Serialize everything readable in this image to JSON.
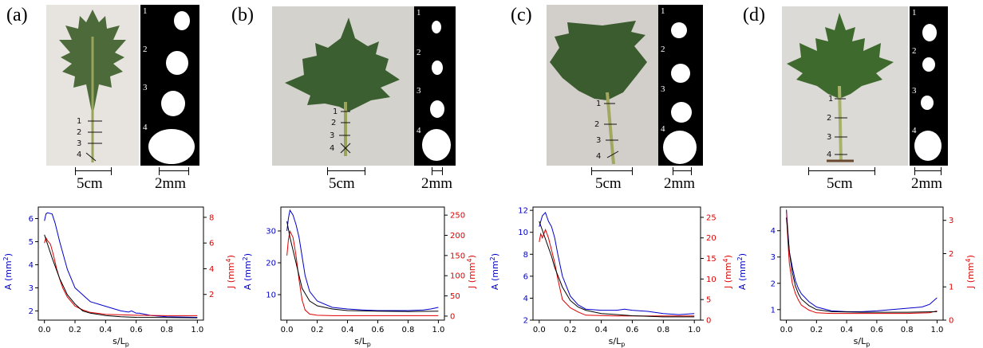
{
  "panels": [
    {
      "letter": "(a)",
      "photo_scale": "5cm",
      "section_scale": "2mm",
      "section_numbers": [
        "1",
        "2",
        "3",
        "4"
      ],
      "petiole_marks": [
        "1",
        "2",
        "3",
        "4"
      ],
      "colors": {
        "photo_bg": "#e7e4df",
        "leaf": "#4d6b3a",
        "stem": "#9aa35a"
      },
      "chart_data": {
        "type": "line",
        "x_ticks": [
          "0.0",
          "0.2",
          "0.4",
          "0.6",
          "0.8",
          "1.0"
        ],
        "xlabel": "s/L",
        "xlabel_sub": "p",
        "ylabel_left": "A (mm",
        "ylabel_left_sup": "2",
        "ylabel_left_end": ")",
        "ylabel_right": "J (mm",
        "ylabel_right_sup": "4",
        "ylabel_right_end": ")",
        "xlim": [
          -0.04,
          1.04
        ],
        "ylim_left": [
          1.6,
          6.5
        ],
        "ylim_right": [
          0.0,
          8.8
        ],
        "y_left_ticks": [
          2,
          3,
          4,
          5,
          6
        ],
        "y_right_ticks": [
          2,
          4,
          6,
          8
        ],
        "series": [
          {
            "axis": "left",
            "color": "#0000cc",
            "x": [
              0,
              0.01,
              0.02,
              0.05,
              0.07,
              0.1,
              0.15,
              0.2,
              0.25,
              0.3,
              0.4,
              0.5,
              0.55,
              0.57,
              0.6,
              0.62,
              0.7,
              0.8,
              1.0
            ],
            "y": [
              5.9,
              6.2,
              6.25,
              6.2,
              5.8,
              5.0,
              3.8,
              3.0,
              2.7,
              2.4,
              2.2,
              2.0,
              1.95,
              2.0,
              1.9,
              1.9,
              1.8,
              1.75,
              1.72
            ]
          },
          {
            "axis": "right",
            "color": "#dd0000",
            "x": [
              0,
              0.01,
              0.02,
              0.04,
              0.06,
              0.08,
              0.1,
              0.12,
              0.15,
              0.2,
              0.25,
              0.3,
              0.4,
              0.6,
              0.8,
              1.0
            ],
            "y": [
              6.0,
              6.4,
              6.2,
              5.9,
              5.0,
              4.0,
              3.2,
              2.5,
              1.8,
              1.1,
              0.8,
              0.6,
              0.45,
              0.38,
              0.35,
              0.35
            ]
          },
          {
            "axis": "left",
            "color": "#000000",
            "x": [
              0,
              0.02,
              0.05,
              0.1,
              0.15,
              0.2,
              0.25,
              0.3,
              0.4,
              0.5,
              0.6,
              0.8,
              1.0
            ],
            "y": [
              5.3,
              4.9,
              4.3,
              3.4,
              2.7,
              2.3,
              2.0,
              1.9,
              1.8,
              1.75,
              1.72,
              1.71,
              1.7
            ]
          }
        ]
      }
    },
    {
      "letter": "(b)",
      "photo_scale": "5cm",
      "section_scale": "2mm",
      "section_numbers": [
        "1",
        "2",
        "3",
        "4"
      ],
      "petiole_marks": [
        "1",
        "2",
        "3",
        "4"
      ],
      "colors": {
        "photo_bg": "#d4d2cd",
        "leaf": "#3c5f32",
        "stem": "#9aa35a"
      },
      "chart_data": {
        "type": "line",
        "x_ticks": [
          "0.0",
          "0.2",
          "0.4",
          "0.6",
          "0.8",
          "1.0"
        ],
        "xlabel": "s/L",
        "xlabel_sub": "p",
        "ylabel_left": "A (mm",
        "ylabel_left_sup": "2",
        "ylabel_left_end": ")",
        "ylabel_right": "J (mm",
        "ylabel_right_sup": "4",
        "ylabel_right_end": ")",
        "xlim": [
          -0.04,
          1.04
        ],
        "ylim_left": [
          2.0,
          37.5
        ],
        "ylim_right": [
          -10,
          270
        ],
        "y_left_ticks": [
          10,
          20,
          30
        ],
        "y_right_ticks": [
          0,
          50,
          100,
          150,
          200,
          250
        ],
        "series": [
          {
            "axis": "left",
            "color": "#0000cc",
            "x": [
              0,
              0.01,
              0.02,
              0.04,
              0.06,
              0.08,
              0.1,
              0.12,
              0.15,
              0.2,
              0.3,
              0.4,
              0.5,
              0.6,
              0.7,
              0.8,
              0.9,
              0.95,
              1.0
            ],
            "y": [
              30,
              34,
              36.5,
              35,
              32,
              28,
              22,
              16,
              11,
              8,
              6,
              5.5,
              5.2,
              5.0,
              5.0,
              5.0,
              5.2,
              5.5,
              6.0
            ]
          },
          {
            "axis": "right",
            "color": "#dd0000",
            "x": [
              0,
              0.01,
              0.02,
              0.04,
              0.06,
              0.08,
              0.1,
              0.12,
              0.15,
              0.2,
              0.3,
              0.5,
              0.8,
              1.0
            ],
            "y": [
              150,
              190,
              210,
              195,
              150,
              90,
              40,
              15,
              5,
              2,
              1,
              1,
              1,
              1
            ]
          },
          {
            "axis": "left",
            "color": "#000000",
            "x": [
              0,
              0.02,
              0.05,
              0.08,
              0.1,
              0.15,
              0.2,
              0.3,
              0.4,
              0.6,
              0.8,
              1.0
            ],
            "y": [
              33,
              28,
              22,
              16,
              12,
              8,
              6.5,
              5.5,
              5,
              4.8,
              4.7,
              4.8
            ]
          }
        ]
      }
    },
    {
      "letter": "(c)",
      "photo_scale": "5cm",
      "section_scale": "2mm",
      "section_numbers": [
        "1",
        "2",
        "3",
        "4"
      ],
      "petiole_marks": [
        "1",
        "2",
        "3",
        "4"
      ],
      "colors": {
        "photo_bg": "#d2cfcb",
        "leaf": "#3b5c2e",
        "stem": "#a2a860"
      },
      "chart_data": {
        "type": "line",
        "x_ticks": [
          "0.0",
          "0.2",
          "0.4",
          "0.6",
          "0.8",
          "1.0"
        ],
        "xlabel": "s/L",
        "xlabel_sub": "p",
        "ylabel_left": "A (mm",
        "ylabel_left_sup": "2",
        "ylabel_left_end": ")",
        "ylabel_right": "J (mm",
        "ylabel_right_sup": "4",
        "ylabel_right_end": ")",
        "xlim": [
          -0.04,
          1.04
        ],
        "ylim_left": [
          2.0,
          12.3
        ],
        "ylim_right": [
          0,
          27.5
        ],
        "y_left_ticks": [
          2,
          4,
          6,
          8,
          10,
          12
        ],
        "y_right_ticks": [
          0,
          5,
          10,
          15,
          20,
          25
        ],
        "series": [
          {
            "axis": "left",
            "color": "#0000cc",
            "x": [
              0,
              0.02,
              0.04,
              0.06,
              0.08,
              0.1,
              0.12,
              0.15,
              0.2,
              0.25,
              0.3,
              0.4,
              0.5,
              0.55,
              0.6,
              0.7,
              0.8,
              0.9,
              1.0
            ],
            "y": [
              10.5,
              11.5,
              11.8,
              11.0,
              10.5,
              9.5,
              8.0,
              6.0,
              4.2,
              3.4,
              3.0,
              2.9,
              2.9,
              3.0,
              2.9,
              2.8,
              2.6,
              2.5,
              2.6
            ]
          },
          {
            "axis": "right",
            "color": "#dd0000",
            "x": [
              0,
              0.01,
              0.02,
              0.04,
              0.06,
              0.08,
              0.1,
              0.12,
              0.15,
              0.2,
              0.25,
              0.3,
              0.5,
              0.8,
              1.0
            ],
            "y": [
              19,
              21,
              20,
              22,
              20,
              17,
              14,
              10,
              5,
              3,
              2,
              1.2,
              1,
              1,
              1
            ]
          },
          {
            "axis": "left",
            "color": "#000000",
            "x": [
              0,
              0.02,
              0.05,
              0.08,
              0.1,
              0.15,
              0.2,
              0.25,
              0.3,
              0.4,
              0.6,
              0.8,
              1.0
            ],
            "y": [
              11,
              10.2,
              9,
              7.8,
              6.8,
              5.0,
              3.8,
              3.2,
              2.9,
              2.6,
              2.4,
              2.3,
              2.3
            ]
          }
        ]
      }
    },
    {
      "letter": "(d)",
      "photo_scale": "5cm",
      "section_scale": "2mm",
      "section_numbers": [
        "1",
        "2",
        "3",
        "4"
      ],
      "petiole_marks": [
        "1",
        "2",
        "3",
        "4"
      ],
      "colors": {
        "photo_bg": "#dcdad6",
        "leaf": "#3e6a2e",
        "stem": "#a9b26a"
      },
      "chart_data": {
        "type": "line",
        "x_ticks": [
          "0.0",
          "0.2",
          "0.4",
          "0.6",
          "0.8",
          "1.0"
        ],
        "xlabel": "s/L",
        "xlabel_sub": "p",
        "ylabel_left": "A (mm",
        "ylabel_left_sup": "2",
        "ylabel_left_end": ")",
        "ylabel_right": "J (mm",
        "ylabel_right_sup": "4",
        "ylabel_right_end": ")",
        "xlim": [
          -0.04,
          1.04
        ],
        "ylim_left": [
          0.6,
          4.9
        ],
        "ylim_right": [
          0.0,
          3.4
        ],
        "y_left_ticks": [
          1,
          2,
          3,
          4
        ],
        "y_right_ticks": [
          0,
          1,
          2,
          3
        ],
        "series": [
          {
            "axis": "left",
            "color": "#0000cc",
            "x": [
              0,
              0.01,
              0.02,
              0.04,
              0.06,
              0.08,
              0.1,
              0.15,
              0.2,
              0.3,
              0.4,
              0.5,
              0.6,
              0.7,
              0.8,
              0.9,
              0.95,
              1.0
            ],
            "y": [
              4.8,
              4.0,
              3.2,
              2.6,
              2.1,
              1.8,
              1.6,
              1.3,
              1.1,
              0.95,
              0.92,
              0.92,
              0.95,
              1.0,
              1.05,
              1.1,
              1.2,
              1.45
            ]
          },
          {
            "axis": "right",
            "color": "#dd0000",
            "x": [
              0,
              0.01,
              0.02,
              0.04,
              0.06,
              0.08,
              0.1,
              0.15,
              0.2,
              0.3,
              0.5,
              0.8,
              0.95,
              1.0
            ],
            "y": [
              3.3,
              2.4,
              1.7,
              1.1,
              0.8,
              0.6,
              0.45,
              0.3,
              0.22,
              0.2,
              0.2,
              0.2,
              0.22,
              0.28
            ]
          },
          {
            "axis": "left",
            "color": "#000000",
            "x": [
              0,
              0.02,
              0.04,
              0.06,
              0.08,
              0.1,
              0.15,
              0.2,
              0.3,
              0.5,
              0.8,
              1.0
            ],
            "y": [
              4.5,
              3.2,
              2.4,
              1.9,
              1.6,
              1.4,
              1.15,
              1.0,
              0.92,
              0.9,
              0.9,
              0.92
            ]
          }
        ]
      }
    }
  ]
}
